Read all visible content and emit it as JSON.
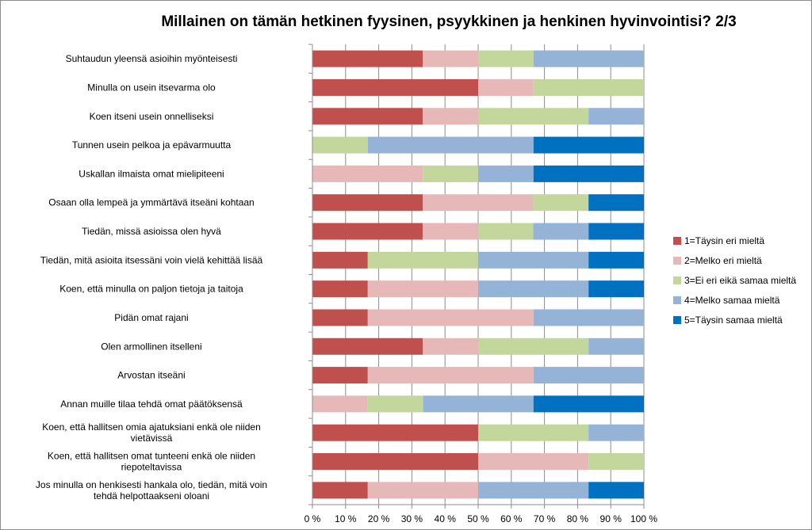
{
  "chart_data": {
    "type": "bar",
    "orientation": "horizontal",
    "stacked": true,
    "percent": true,
    "title": "Millainen on tämän hetkinen fyysinen, psyykkinen ja henkinen hyvinvointisi? 2/3",
    "categories": [
      "Suhtaudun yleensä asioihin myönteisesti",
      "Minulla on usein itsevarma olo",
      "Koen itseni usein onnelliseksi",
      "Tunnen usein pelkoa ja epävarmuutta",
      "Uskallan ilmaista omat mielipiteeni",
      "Osaan olla lempeä ja ymmärtävä itseäni kohtaan",
      "Tiedän, missä asioissa olen hyvä",
      "Tiedän, mitä asioita itsessäni voin vielä kehittää lisää",
      "Koen, että minulla on paljon tietoja ja taitoja",
      "Pidän omat rajani",
      "Olen armollinen itselleni",
      "Arvostan itseäni",
      "Annan muille tilaa tehdä omat päätöksensä",
      "Koen, että hallitsen omia ajatuksiani enkä ole niiden vietävissä",
      "Koen, että hallitsen omat tunteeni enkä ole niiden riepoteltavissa",
      "Jos minulla on henkisesti hankala olo, tiedän, mitä voin tehdä helpottaakseni oloani"
    ],
    "series": [
      {
        "name": "1=Täysin eri mieltä",
        "color": "#c0504d",
        "values": [
          33.3,
          50,
          33.3,
          0,
          0,
          33.3,
          33.3,
          16.7,
          16.7,
          16.7,
          33.3,
          16.7,
          0,
          50,
          50,
          16.7
        ]
      },
      {
        "name": "2=Melko eri mieltä",
        "color": "#e6b9b8",
        "values": [
          16.7,
          16.7,
          16.7,
          0,
          33.3,
          33.3,
          16.7,
          0,
          33.3,
          50,
          16.7,
          50,
          16.7,
          0,
          33.3,
          33.3
        ]
      },
      {
        "name": "3=Ei eri eikä samaa mieltä",
        "color": "#c3d69b",
        "values": [
          16.7,
          33.3,
          33.3,
          16.7,
          16.7,
          16.7,
          16.7,
          33.3,
          0,
          0,
          33.3,
          0,
          16.7,
          33.3,
          16.7,
          0
        ]
      },
      {
        "name": "4=Melko samaa mieltä",
        "color": "#95b3d7",
        "values": [
          33.3,
          0,
          16.7,
          50,
          16.7,
          0,
          16.7,
          33.3,
          33.3,
          33.3,
          16.7,
          33.3,
          33.3,
          16.7,
          0,
          33.3
        ]
      },
      {
        "name": "5=Täysin samaa mieltä",
        "color": "#0070c0",
        "values": [
          0,
          0,
          0,
          33.3,
          33.3,
          16.7,
          16.7,
          16.7,
          16.7,
          0,
          0,
          0,
          33.3,
          0,
          0,
          16.7
        ]
      }
    ],
    "xlim": [
      0,
      100
    ],
    "x_ticks": [
      "0 %",
      "10 %",
      "20 %",
      "30 %",
      "40 %",
      "50 %",
      "60 %",
      "70 %",
      "80 %",
      "90 %",
      "100 %"
    ],
    "grid": true,
    "legend_position": "right"
  }
}
